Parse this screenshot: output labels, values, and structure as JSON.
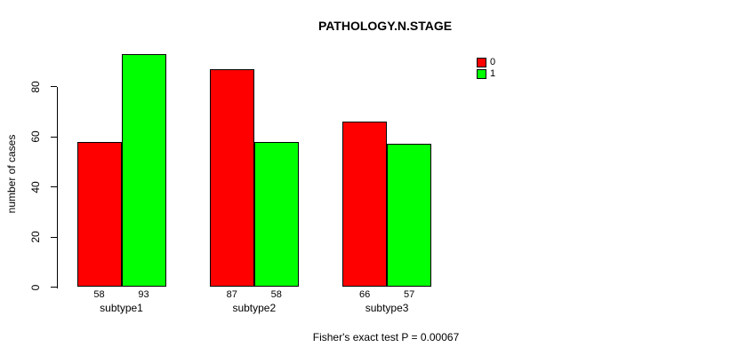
{
  "chart_data": {
    "type": "bar",
    "title": "PATHOLOGY.N.STAGE",
    "xlabel": "",
    "ylabel": "number of cases",
    "categories": [
      "subtype1",
      "subtype2",
      "subtype3"
    ],
    "series": [
      {
        "name": "0",
        "color": "#ff0000",
        "values": [
          58,
          87,
          66
        ]
      },
      {
        "name": "1",
        "color": "#00ff00",
        "values": [
          93,
          58,
          57
        ]
      }
    ],
    "yticks": [
      0,
      20,
      40,
      60,
      80
    ],
    "ylim": [
      0,
      95
    ],
    "grid": false,
    "bar_border_color": "#000000",
    "show_value_labels": true,
    "legend_position": "top-right",
    "legend_entries": [
      "0",
      "1"
    ],
    "annotation": "Fisher's exact test P = 0.00067"
  }
}
